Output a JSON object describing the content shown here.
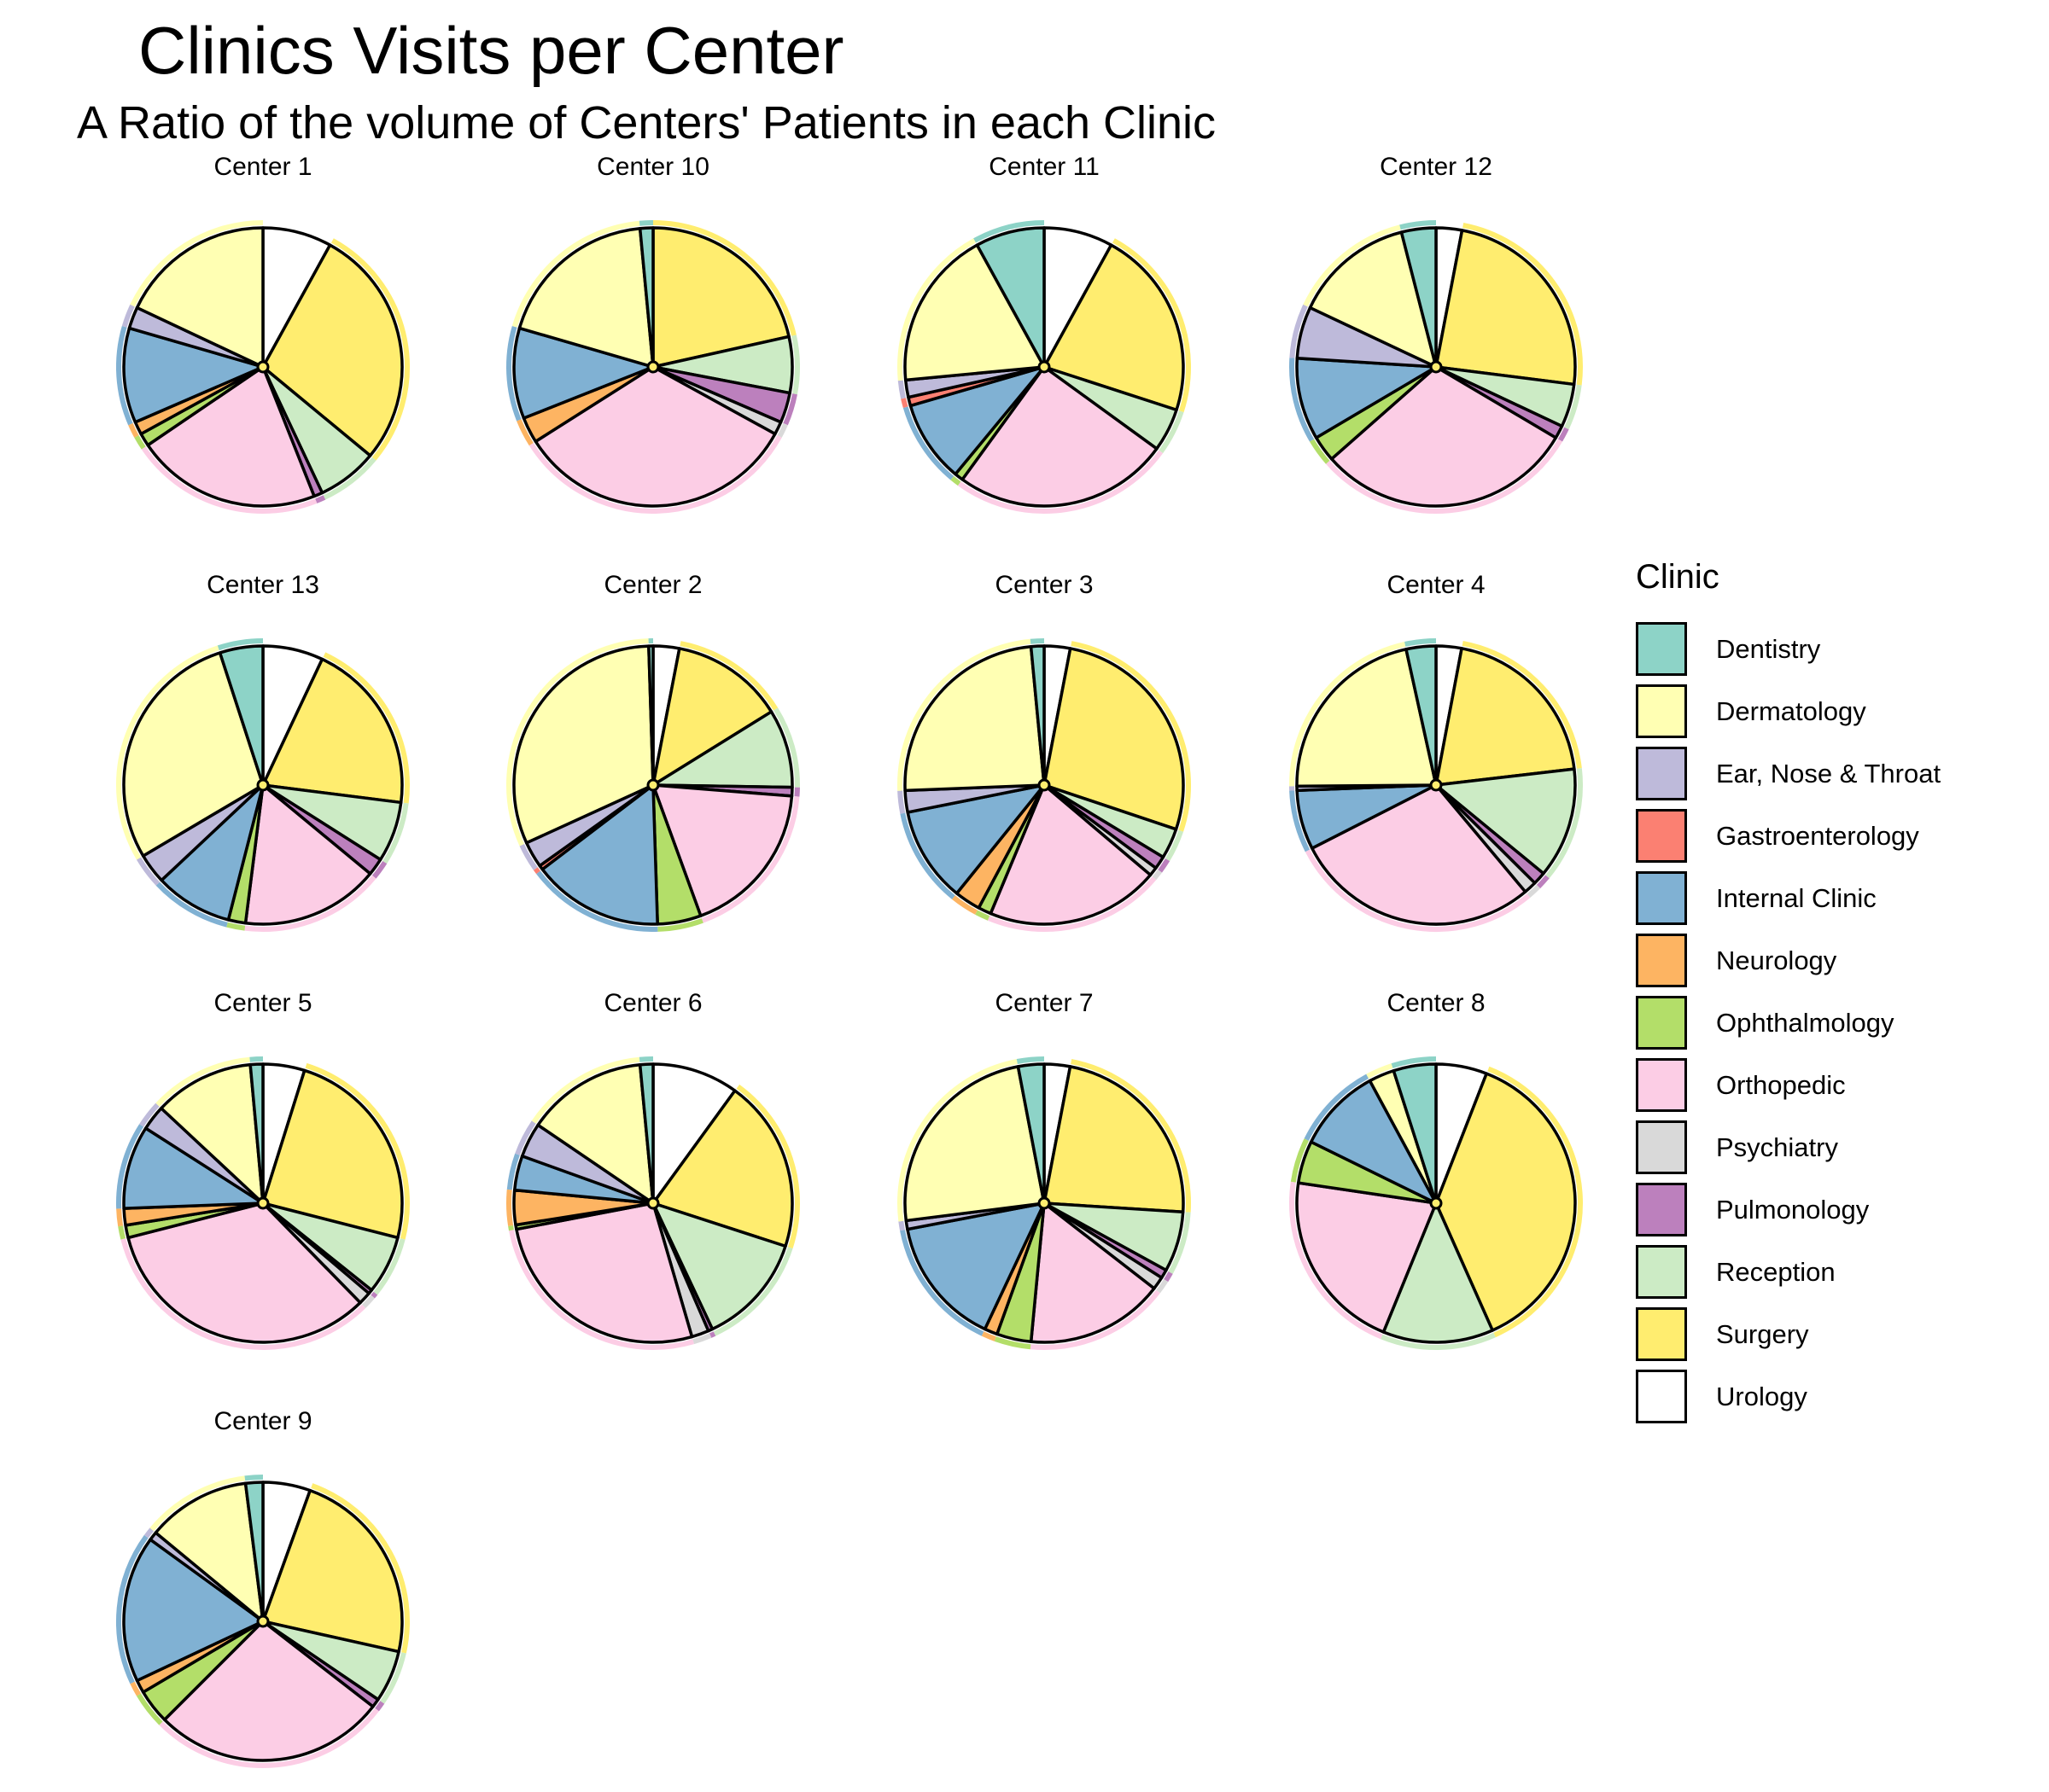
{
  "chart_data": {
    "type": "pie",
    "title": "Clinics Visits per Center",
    "subtitle": "A Ratio of the volume of Centers' Patients in each Clinic",
    "legend": {
      "title": "Clinic",
      "placement": "right"
    },
    "categories": [
      "Dentistry",
      "Dermatology",
      "Ear, Nose & Throat",
      "Gastroenterology",
      "Internal Clinic",
      "Neurology",
      "Ophthalmology",
      "Orthopedic",
      "Psychiatry",
      "Pulmonology",
      "Reception",
      "Surgery",
      "Urology"
    ],
    "colors": [
      "#8DD3C7",
      "#FFFFB3",
      "#BEBADA",
      "#FB8072",
      "#80B1D3",
      "#FDB462",
      "#B3DE69",
      "#FCCDE5",
      "#D9D9D9",
      "#BC80BD",
      "#CCEBC5",
      "#FFED6F",
      "#FFFFFF"
    ],
    "panel_order": [
      "Urology",
      "Surgery",
      "Reception",
      "Pulmonology",
      "Psychiatry",
      "Orthopedic",
      "Ophthalmology",
      "Neurology",
      "Internal Clinic",
      "Gastroenterology",
      "Ear, Nose & Throat",
      "Dermatology",
      "Dentistry"
    ],
    "series": [
      {
        "name": "Center 1",
        "values": [
          0,
          18,
          2.5,
          0,
          11,
          1.5,
          1.5,
          21.5,
          0,
          1,
          7,
          28,
          8
        ]
      },
      {
        "name": "Center 10",
        "values": [
          1.5,
          19,
          0,
          0,
          10.5,
          3,
          0,
          33,
          1.5,
          3.5,
          6.5,
          21.5,
          0
        ]
      },
      {
        "name": "Center 11",
        "values": [
          8,
          18.5,
          2,
          1,
          9.5,
          0,
          1,
          25,
          0,
          0,
          5,
          22,
          8
        ]
      },
      {
        "name": "Center 12",
        "values": [
          4,
          14,
          6,
          0,
          9.5,
          0,
          3,
          30,
          0,
          1.5,
          5,
          24,
          3
        ]
      },
      {
        "name": "Center 13",
        "values": [
          5,
          28.5,
          3.5,
          0,
          9,
          0,
          2,
          16,
          0,
          2,
          7,
          20,
          7
        ]
      },
      {
        "name": "Center 2",
        "values": [
          0.5,
          31,
          3,
          0.5,
          15,
          0,
          5,
          18,
          0,
          1,
          9,
          13,
          3
        ]
      },
      {
        "name": "Center 3",
        "values": [
          1.5,
          24,
          2.5,
          0,
          11,
          3,
          1.5,
          20,
          1,
          1.5,
          3.5,
          27,
          3
        ]
      },
      {
        "name": "Center 4",
        "values": [
          3.5,
          22,
          0.5,
          0,
          7,
          0,
          0,
          29,
          1.5,
          1.5,
          13,
          20.5,
          3
        ]
      },
      {
        "name": "Center 5",
        "values": [
          1.5,
          12,
          3,
          0,
          10,
          2,
          1.5,
          34.5,
          1.5,
          0.5,
          7,
          25,
          5
        ]
      },
      {
        "name": "Center 6",
        "values": [
          1.5,
          14,
          4,
          0,
          4,
          4,
          0.5,
          26.5,
          2,
          0.5,
          13,
          20,
          10
        ]
      },
      {
        "name": "Center 7",
        "values": [
          3,
          24,
          1,
          0,
          15,
          1.5,
          4,
          16,
          1.5,
          1,
          7,
          23,
          3
        ]
      },
      {
        "name": "Center 8",
        "values": [
          5,
          3,
          0,
          0,
          10,
          0,
          5,
          21.5,
          0,
          0,
          13,
          38,
          6
        ]
      },
      {
        "name": "Center 9",
        "values": [
          2,
          12,
          1,
          0,
          17,
          1.5,
          4,
          27,
          0,
          1,
          6,
          23,
          5.5
        ]
      }
    ]
  }
}
